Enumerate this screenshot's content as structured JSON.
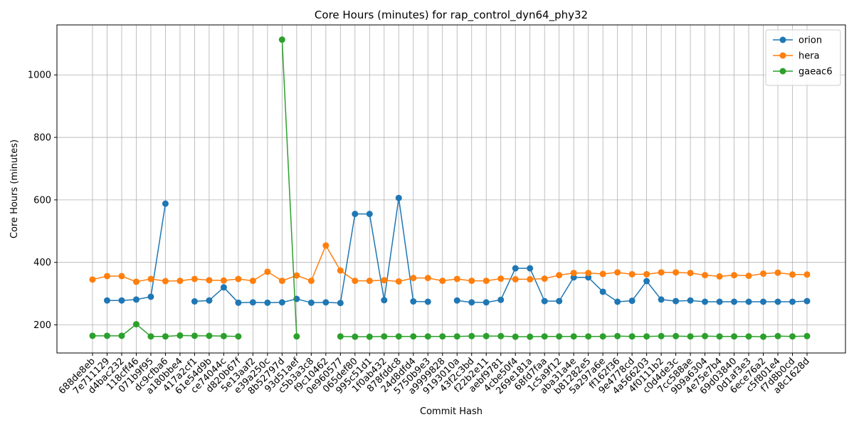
{
  "chart_data": {
    "type": "line",
    "title": "Core Hours (minutes) for rap_control_dyn64_phy32",
    "xlabel": "Commit Hash",
    "ylabel": "Core Hours (minutes)",
    "ylim": [
      110,
      1160
    ],
    "yticks": [
      200,
      400,
      600,
      800,
      1000
    ],
    "grid": true,
    "legend_position": "top-right",
    "categories": [
      "688de8eb",
      "7e711129",
      "d4bac232",
      "118cff46",
      "071b9f95",
      "dc9cfba6",
      "a180bbe4",
      "417a2cf1",
      "61e54d9b",
      "ce74044c",
      "d820b67f",
      "5e13aaf2",
      "e39a250c",
      "8b52797d",
      "93d51aef",
      "c5b3a3c8",
      "f9c10462",
      "0e960577",
      "065def80",
      "995c51d1",
      "1f0ab432",
      "878fddc8",
      "24d8dfd4",
      "5750b9e3",
      "a9999828",
      "9193010a",
      "43f2c3bd",
      "f22b2e11",
      "aebf9781",
      "4cbe50f4",
      "269e181a",
      "68fd7faa",
      "1c5a9f12",
      "aba31a4e",
      "b81282e5",
      "5a297a6e",
      "ff162f36",
      "9e4778cd",
      "4a566203",
      "4f0111b2",
      "c0d4de3c",
      "7cc588ae",
      "9b9a6304",
      "4e75e7b4",
      "69d03840",
      "0d1af3e3",
      "6ece76a2",
      "c5f801e4",
      "f7d8b0cd",
      "a8c1628d"
    ],
    "series": [
      {
        "name": "orion",
        "color": "#1f77b4",
        "values": [
          null,
          278,
          278,
          281,
          290,
          588,
          null,
          275,
          278,
          320,
          271,
          272,
          271,
          272,
          283,
          271,
          272,
          270,
          555,
          555,
          279,
          606,
          275,
          274,
          null,
          278,
          272,
          272,
          280,
          381,
          381,
          276,
          276,
          352,
          352,
          306,
          274,
          277,
          340,
          281,
          276,
          278,
          274,
          274,
          274,
          274,
          274,
          274,
          274,
          276
        ]
      },
      {
        "name": "hera",
        "color": "#ff7f0e",
        "values": [
          345,
          356,
          356,
          338,
          347,
          340,
          341,
          347,
          343,
          342,
          347,
          341,
          370,
          341,
          358,
          341,
          454,
          374,
          341,
          341,
          343,
          339,
          350,
          350,
          341,
          347,
          341,
          341,
          348,
          346,
          346,
          348,
          359,
          366,
          366,
          363,
          368,
          362,
          362,
          368,
          368,
          366,
          359,
          355,
          359,
          357,
          364,
          367,
          361,
          361
        ]
      },
      {
        "name": "gaeac6",
        "color": "#2ca02c",
        "values": [
          165,
          165,
          165,
          202,
          163,
          163,
          166,
          165,
          165,
          164,
          163,
          null,
          null,
          1113,
          163,
          null,
          null,
          163,
          162,
          162,
          163,
          163,
          163,
          163,
          163,
          163,
          164,
          164,
          164,
          162,
          162,
          163,
          163,
          163,
          163,
          163,
          164,
          163,
          163,
          164,
          164,
          163,
          164,
          163,
          163,
          163,
          162,
          164,
          163,
          164
        ]
      }
    ]
  }
}
